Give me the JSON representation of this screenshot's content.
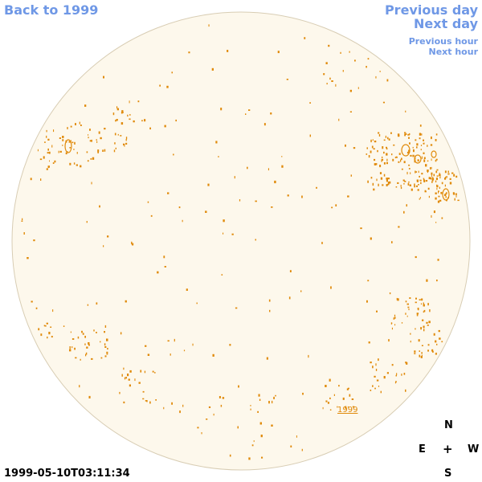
{
  "nav": {
    "back_label": "Back to 1999",
    "prev_day_label": "Previous day",
    "next_day_label": "Next day",
    "prev_hour_label": "Previous hour",
    "next_hour_label": "Next hour"
  },
  "image": {
    "disk_fill": "#fdf8ec",
    "disk_stroke": "#d8cdb4",
    "feature_color": "#e08a0a",
    "year_link_label": "1999"
  },
  "compass": {
    "n": "N",
    "e": "E",
    "center": "+",
    "w": "W",
    "s": "S"
  },
  "timestamp": "1999-05-10T03:11:34",
  "colors": {
    "nav_link": "#6f98e6"
  }
}
